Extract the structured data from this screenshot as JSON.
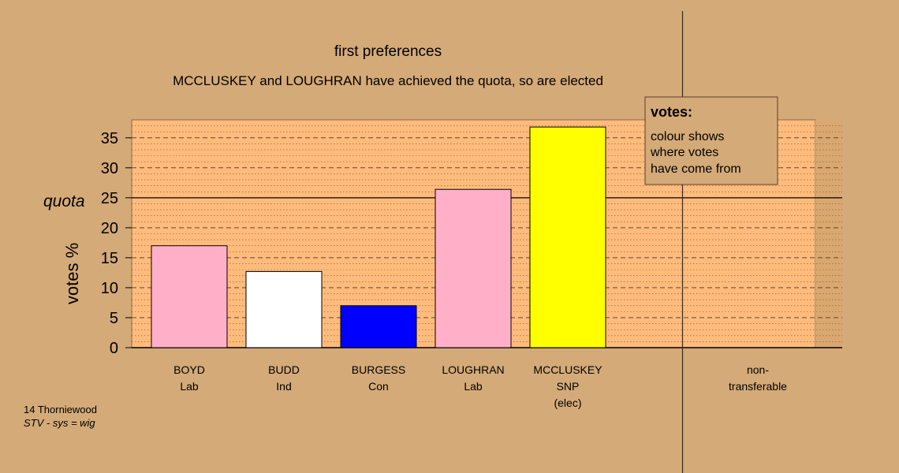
{
  "chart_data": {
    "type": "bar",
    "title": "first preferences",
    "subtitle": "MCCLUSKEY and LOUGHRAN have achieved the quota, so are elected",
    "ylabel": "votes %",
    "xlabel": "",
    "ylim": [
      0,
      38
    ],
    "yticks": [
      0,
      5,
      10,
      15,
      20,
      25,
      30,
      35
    ],
    "quota": 25,
    "quota_label": "quota",
    "grid": true,
    "categories": [
      {
        "name": "BOYD",
        "party": "Lab",
        "status": "",
        "value": 17.0,
        "color": "#ffb0c8"
      },
      {
        "name": "BUDD",
        "party": "Ind",
        "status": "",
        "value": 12.7,
        "color": "#ffffff"
      },
      {
        "name": "BURGESS",
        "party": "Con",
        "status": "",
        "value": 7.0,
        "color": "#0000ff"
      },
      {
        "name": "LOUGHRAN",
        "party": "Lab",
        "status": "",
        "value": 26.4,
        "color": "#ffb0c8"
      },
      {
        "name": "MCCLUSKEY",
        "party": "SNP",
        "status": "(elec)",
        "value": 36.8,
        "color": "#ffff00"
      }
    ],
    "non_transferable": {
      "line1": "non-",
      "line2": "transferable",
      "value": 0
    },
    "legend": {
      "title": "votes:",
      "lines": [
        "colour shows",
        "where votes",
        "have come from"
      ],
      "placement": "top-right"
    },
    "footer": {
      "line1": "14 Thorniewood",
      "line2": "STV - sys = wig"
    },
    "colors": {
      "background": "#d4aa78",
      "plot_area": "#ffbb7c",
      "legend_bg": "#d4aa78"
    }
  }
}
